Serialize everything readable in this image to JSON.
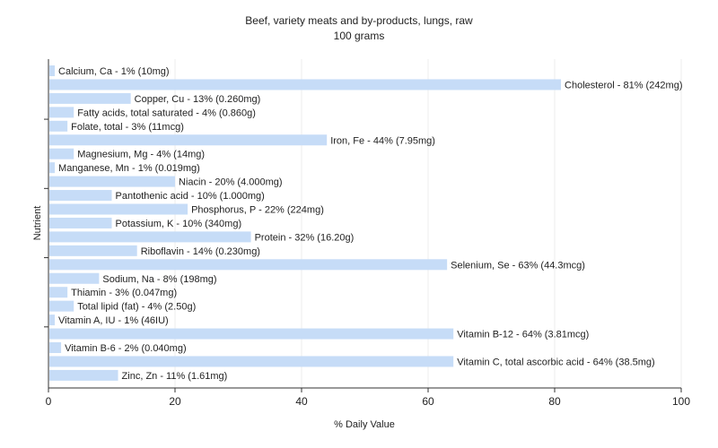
{
  "chart_data": {
    "type": "bar",
    "orientation": "horizontal",
    "title": "Beef, variety meats and by-products, lungs, raw",
    "subtitle": "100 grams",
    "xlabel": "% Daily Value",
    "ylabel": "Nutrient",
    "xlim": [
      0,
      100
    ],
    "xticks": [
      0,
      20,
      40,
      60,
      80,
      100
    ],
    "grid": true,
    "bar_color": "#c6dcf7",
    "categories": [
      "Calcium, Ca",
      "Cholesterol",
      "Copper, Cu",
      "Fatty acids, total saturated",
      "Folate, total",
      "Iron, Fe",
      "Magnesium, Mg",
      "Manganese, Mn",
      "Niacin",
      "Pantothenic acid",
      "Phosphorus, P",
      "Potassium, K",
      "Protein",
      "Riboflavin",
      "Selenium, Se",
      "Sodium, Na",
      "Thiamin",
      "Total lipid (fat)",
      "Vitamin A, IU",
      "Vitamin B-12",
      "Vitamin B-6",
      "Vitamin C, total ascorbic acid",
      "Zinc, Zn"
    ],
    "values": [
      1,
      81,
      13,
      4,
      3,
      44,
      4,
      1,
      20,
      10,
      22,
      10,
      32,
      14,
      63,
      8,
      3,
      4,
      1,
      64,
      2,
      64,
      11
    ],
    "labels": [
      "Calcium, Ca - 1% (10mg)",
      "Cholesterol - 81% (242mg)",
      "Copper, Cu - 13% (0.260mg)",
      "Fatty acids, total saturated - 4% (0.860g)",
      "Folate, total - 3% (11mcg)",
      "Iron, Fe - 44% (7.95mg)",
      "Magnesium, Mg - 4% (14mg)",
      "Manganese, Mn - 1% (0.019mg)",
      "Niacin - 20% (4.000mg)",
      "Pantothenic acid - 10% (1.000mg)",
      "Phosphorus, P - 22% (224mg)",
      "Potassium, K - 10% (340mg)",
      "Protein - 32% (16.20g)",
      "Riboflavin - 14% (0.230mg)",
      "Selenium, Se - 63% (44.3mcg)",
      "Sodium, Na - 8% (198mg)",
      "Thiamin - 3% (0.047mg)",
      "Total lipid (fat) - 4% (2.50g)",
      "Vitamin A, IU - 1% (46IU)",
      "Vitamin B-12 - 64% (3.81mcg)",
      "Vitamin B-6 - 2% (0.040mg)",
      "Vitamin C, total ascorbic acid - 64% (38.5mg)",
      "Zinc, Zn - 11% (1.61mg)"
    ]
  }
}
